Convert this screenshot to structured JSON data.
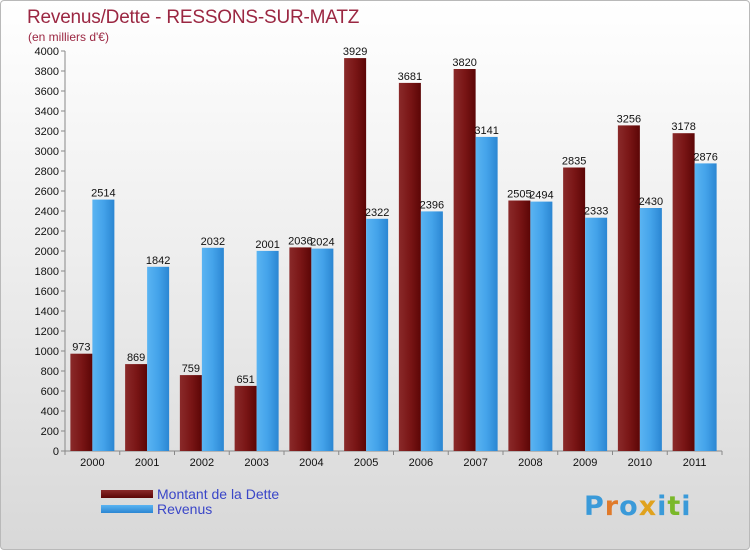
{
  "title": "Revenus/Dette - RESSONS-SUR-MATZ",
  "subtitle": "(en milliers d'€)",
  "logo": {
    "text": "Proxiti",
    "letter_colors": [
      "#3a9ad9",
      "#e07a2a",
      "#3a9ad9",
      "#e0a21e",
      "#3a9ad9",
      "#7ab829",
      "#3a9ad9"
    ]
  },
  "legend": [
    {
      "label": "Montant de la Dette",
      "color": "#6b0a0a"
    },
    {
      "label": "Revenus",
      "color": "#3e9ee6"
    }
  ],
  "chart_data": {
    "type": "bar",
    "categories": [
      "2000",
      "2001",
      "2002",
      "2003",
      "2004",
      "2005",
      "2006",
      "2007",
      "2008",
      "2009",
      "2010",
      "2011"
    ],
    "series": [
      {
        "name": "Montant de la Dette",
        "values": [
          973,
          869,
          759,
          651,
          2036,
          3929,
          3681,
          3820,
          2505,
          2835,
          3256,
          3178
        ],
        "color": "#6b0a0a"
      },
      {
        "name": "Revenus",
        "values": [
          2514,
          1842,
          2032,
          2001,
          2024,
          2322,
          2396,
          3141,
          2494,
          2333,
          2430,
          2876
        ],
        "color": "#3e9ee6"
      }
    ],
    "yticks": [
      0,
      200,
      400,
      600,
      800,
      1000,
      1200,
      1400,
      1600,
      1800,
      2000,
      2200,
      2400,
      2600,
      2800,
      3000,
      3200,
      3400,
      3600,
      3800,
      4000
    ],
    "ylim": [
      0,
      4000
    ],
    "grid": false,
    "legend_position": "bottom-left"
  }
}
